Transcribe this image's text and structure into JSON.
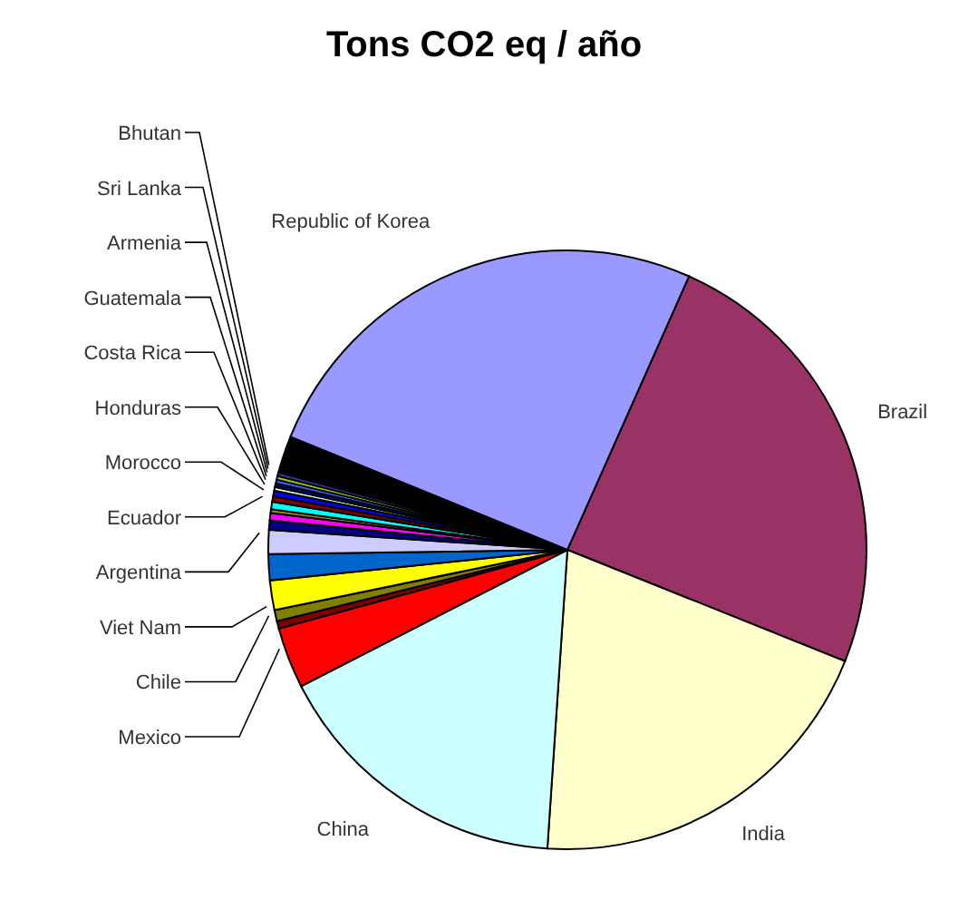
{
  "chart_data": {
    "type": "pie",
    "title": "Tons CO2 eq / año",
    "categories": [
      "Brazil",
      "India",
      "China",
      "Mexico",
      "Chile",
      "Viet Nam",
      null,
      null,
      "Argentina",
      null,
      null,
      null,
      "Ecuador",
      "Morocco",
      "Honduras",
      "Costa Rica",
      "Guatemala",
      "Armenia",
      "Sri Lanka",
      "Bhutan",
      null,
      "Republic of Korea"
    ],
    "values": [
      24.4,
      20,
      16.4,
      3.3,
      0.4,
      0.6,
      1.6,
      1.4,
      1.3,
      0.5,
      0.4,
      0.2,
      0.4,
      0.3,
      0.3,
      0.2,
      0.2,
      0.2,
      0.2,
      0.2,
      2.0,
      25.5
    ],
    "colors": [
      "#993366",
      "#ffffcc",
      "#ccffff",
      "#ff0000",
      "#800000",
      "#808000",
      "#ffff00",
      "#0066cc",
      "#ccccff",
      "#000080",
      "#ff00ff",
      "#999900",
      "#00ffff",
      "#800000",
      "#0000ff",
      "#ccffcc",
      "#000080",
      "#3366ff",
      "#99cc00",
      "#333399",
      "#000000",
      "#9999ff"
    ],
    "legend": false
  }
}
